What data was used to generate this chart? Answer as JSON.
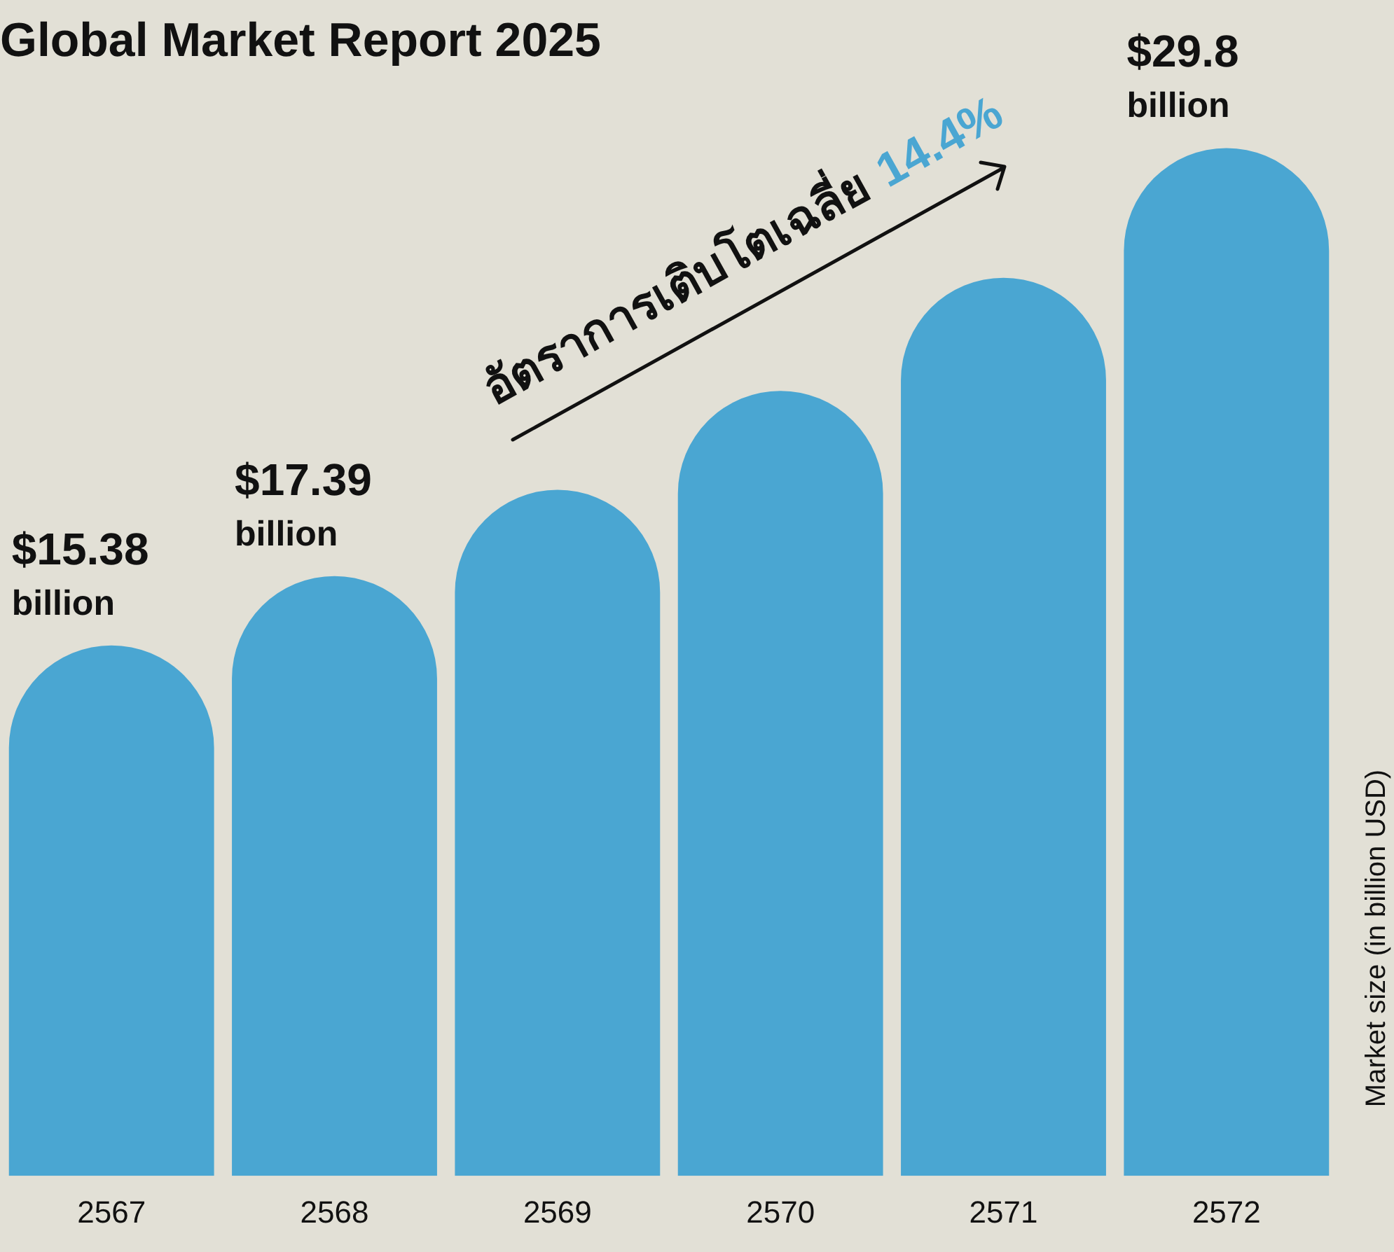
{
  "chart_data": {
    "type": "bar",
    "title": "Global Market Report 2025",
    "ylabel": "Market size (in billion USD)",
    "categories": [
      "2567",
      "2568",
      "2569",
      "2570",
      "2571",
      "2572"
    ],
    "values": [
      15.38,
      17.39,
      19.89,
      22.76,
      26.04,
      29.8
    ],
    "value_labels": [
      "$15.38 billion",
      "$17.39 billion",
      null,
      null,
      null,
      "$29.8 billion"
    ],
    "color": "#4aa6d2",
    "annotations": [
      "อัตราการเติบโตเฉลี่ย",
      "14.4%"
    ],
    "grid": false,
    "legend": false
  }
}
